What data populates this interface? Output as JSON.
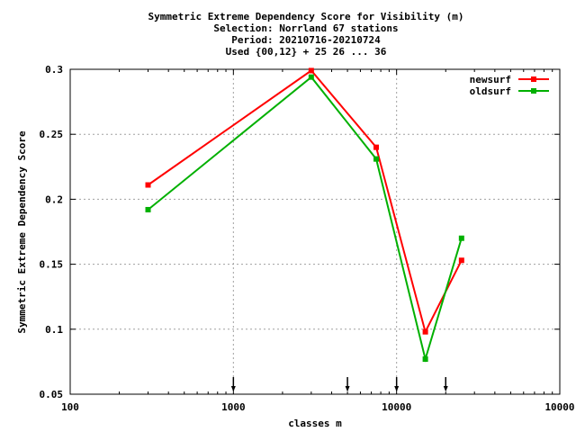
{
  "chart_data": {
    "type": "line",
    "title_lines": [
      "Symmetric Extreme Dependency Score  for Visibility (m)",
      "Selection: Norrland     67 stations",
      "Period: 20210716-20210724",
      "Used {00,12} + 25 26 ... 36"
    ],
    "xlabel": "classes m",
    "ylabel": "Symmetric Extreme Dependency Score",
    "xscale": "log",
    "xlim": [
      100,
      100000
    ],
    "ylim": [
      0.05,
      0.3
    ],
    "x_ticks": [
      "100",
      "1000",
      "10000",
      "10000"
    ],
    "y_ticks": [
      "0.05",
      "0.1",
      "0.15",
      "0.2",
      "0.25",
      "0.3"
    ],
    "grid": true,
    "legend_position": "top-right",
    "arrow_markers_x": [
      1000,
      5000,
      10000,
      20000
    ],
    "series": [
      {
        "name": "newsurf",
        "color": "#ff0000",
        "x": [
          300,
          3000,
          7500,
          15000,
          25000
        ],
        "y": [
          0.211,
          0.299,
          0.24,
          0.098,
          0.153
        ]
      },
      {
        "name": "oldsurf",
        "color": "#00b000",
        "x": [
          300,
          3000,
          7500,
          15000,
          25000
        ],
        "y": [
          0.192,
          0.294,
          0.231,
          0.077,
          0.17
        ]
      }
    ]
  }
}
